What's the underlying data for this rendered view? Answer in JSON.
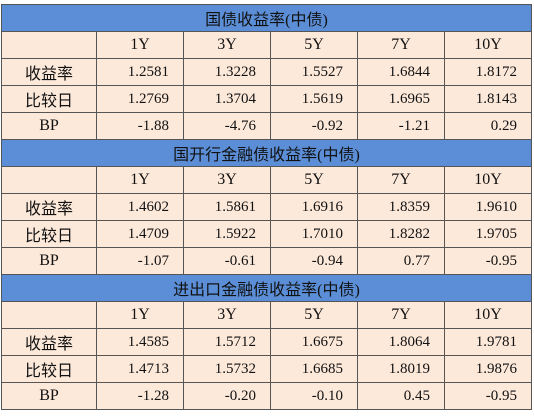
{
  "sections": [
    {
      "title": "国债收益率(中债)",
      "columns": [
        "1Y",
        "3Y",
        "5Y",
        "7Y",
        "10Y"
      ],
      "rows": [
        {
          "label": "收益率",
          "values": [
            "1.2581",
            "1.3228",
            "1.5527",
            "1.6844",
            "1.8172"
          ]
        },
        {
          "label": "比较日",
          "values": [
            "1.2769",
            "1.3704",
            "1.5619",
            "1.6965",
            "1.8143"
          ]
        },
        {
          "label": "BP",
          "values": [
            "-1.88",
            "-4.76",
            "-0.92",
            "-1.21",
            "0.29"
          ]
        }
      ]
    },
    {
      "title": "国开行金融债收益率(中债)",
      "columns": [
        "1Y",
        "3Y",
        "5Y",
        "7Y",
        "10Y"
      ],
      "rows": [
        {
          "label": "收益率",
          "values": [
            "1.4602",
            "1.5861",
            "1.6916",
            "1.8359",
            "1.9610"
          ]
        },
        {
          "label": "比较日",
          "values": [
            "1.4709",
            "1.5922",
            "1.7010",
            "1.8282",
            "1.9705"
          ]
        },
        {
          "label": "BP",
          "values": [
            "-1.07",
            "-0.61",
            "-0.94",
            "0.77",
            "-0.95"
          ]
        }
      ]
    },
    {
      "title": "进出口金融债收益率(中债)",
      "columns": [
        "1Y",
        "3Y",
        "5Y",
        "7Y",
        "10Y"
      ],
      "rows": [
        {
          "label": "收益率",
          "values": [
            "1.4585",
            "1.5712",
            "1.6675",
            "1.8064",
            "1.9781"
          ]
        },
        {
          "label": "比较日",
          "values": [
            "1.4713",
            "1.5732",
            "1.6685",
            "1.8019",
            "1.9876"
          ]
        },
        {
          "label": "BP",
          "values": [
            "-1.28",
            "-0.20",
            "-0.10",
            "0.45",
            "-0.95"
          ]
        }
      ]
    }
  ]
}
